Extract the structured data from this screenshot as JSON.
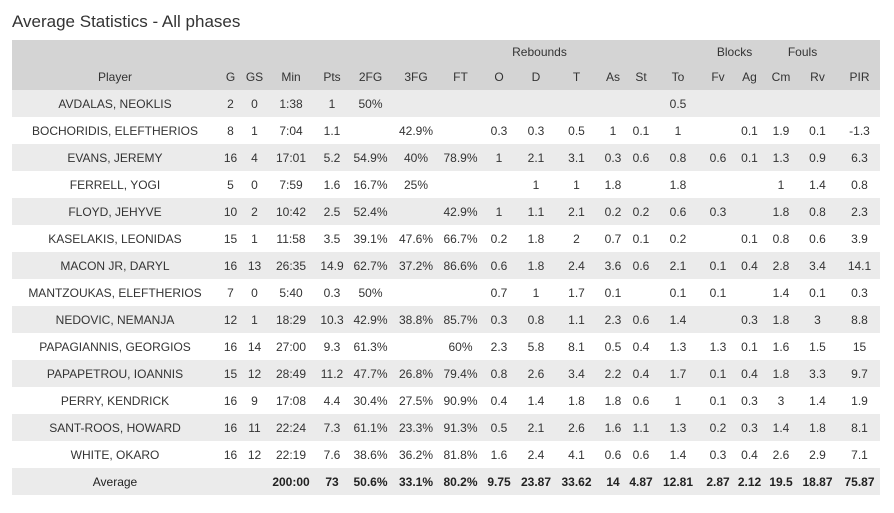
{
  "title": "Average Statistics - All phases",
  "groups": {
    "rebounds": "Rebounds",
    "blocks": "Blocks",
    "fouls": "Fouls"
  },
  "columns": [
    "Player",
    "G",
    "GS",
    "Min",
    "Pts",
    "2FG",
    "3FG",
    "FT",
    "O",
    "D",
    "T",
    "As",
    "St",
    "To",
    "Fv",
    "Ag",
    "Cm",
    "Rv",
    "PIR"
  ],
  "rows": [
    [
      "AVDALAS, NEOKLIS",
      "2",
      "0",
      "1:38",
      "1",
      "50%",
      "",
      "",
      "",
      "",
      "",
      "",
      "",
      "0.5",
      "",
      "",
      "",
      "",
      ""
    ],
    [
      "BOCHORIDIS, ELEFTHERIOS",
      "8",
      "1",
      "7:04",
      "1.1",
      "",
      "42.9%",
      "",
      "0.3",
      "0.3",
      "0.5",
      "1",
      "0.1",
      "1",
      "",
      "0.1",
      "1.9",
      "0.1",
      "-1.3"
    ],
    [
      "EVANS, JEREMY",
      "16",
      "4",
      "17:01",
      "5.2",
      "54.9%",
      "40%",
      "78.9%",
      "1",
      "2.1",
      "3.1",
      "0.3",
      "0.6",
      "0.8",
      "0.6",
      "0.1",
      "1.3",
      "0.9",
      "6.3"
    ],
    [
      "FERRELL, YOGI",
      "5",
      "0",
      "7:59",
      "1.6",
      "16.7%",
      "25%",
      "",
      "",
      "1",
      "1",
      "1.8",
      "",
      "1.8",
      "",
      "",
      "1",
      "1.4",
      "0.8"
    ],
    [
      "FLOYD, JEHYVE",
      "10",
      "2",
      "10:42",
      "2.5",
      "52.4%",
      "",
      "42.9%",
      "1",
      "1.1",
      "2.1",
      "0.2",
      "0.2",
      "0.6",
      "0.3",
      "",
      "1.8",
      "0.8",
      "2.3"
    ],
    [
      "KASELAKIS, LEONIDAS",
      "15",
      "1",
      "11:58",
      "3.5",
      "39.1%",
      "47.6%",
      "66.7%",
      "0.2",
      "1.8",
      "2",
      "0.7",
      "0.1",
      "0.2",
      "",
      "0.1",
      "0.8",
      "0.6",
      "3.9"
    ],
    [
      "MACON JR, DARYL",
      "16",
      "13",
      "26:35",
      "14.9",
      "62.7%",
      "37.2%",
      "86.6%",
      "0.6",
      "1.8",
      "2.4",
      "3.6",
      "0.6",
      "2.1",
      "0.1",
      "0.4",
      "2.8",
      "3.4",
      "14.1"
    ],
    [
      "MANTZOUKAS, ELEFTHERIOS",
      "7",
      "0",
      "5:40",
      "0.3",
      "50%",
      "",
      "",
      "0.7",
      "1",
      "1.7",
      "0.1",
      "",
      "0.1",
      "0.1",
      "",
      "1.4",
      "0.1",
      "0.3"
    ],
    [
      "NEDOVIC, NEMANJA",
      "12",
      "1",
      "18:29",
      "10.3",
      "42.9%",
      "38.8%",
      "85.7%",
      "0.3",
      "0.8",
      "1.1",
      "2.3",
      "0.6",
      "1.4",
      "",
      "0.3",
      "1.8",
      "3",
      "8.8"
    ],
    [
      "PAPAGIANNIS, GEORGIOS",
      "16",
      "14",
      "27:00",
      "9.3",
      "61.3%",
      "",
      "60%",
      "2.3",
      "5.8",
      "8.1",
      "0.5",
      "0.4",
      "1.3",
      "1.3",
      "0.1",
      "1.6",
      "1.5",
      "15"
    ],
    [
      "PAPAPETROU, IOANNIS",
      "15",
      "12",
      "28:49",
      "11.2",
      "47.7%",
      "26.8%",
      "79.4%",
      "0.8",
      "2.6",
      "3.4",
      "2.2",
      "0.4",
      "1.7",
      "0.1",
      "0.4",
      "1.8",
      "3.3",
      "9.7"
    ],
    [
      "PERRY, KENDRICK",
      "16",
      "9",
      "17:08",
      "4.4",
      "30.4%",
      "27.5%",
      "90.9%",
      "0.4",
      "1.4",
      "1.8",
      "1.8",
      "0.6",
      "1",
      "0.1",
      "0.3",
      "3",
      "1.4",
      "1.9"
    ],
    [
      "SANT-ROOS, HOWARD",
      "16",
      "11",
      "22:24",
      "7.3",
      "61.1%",
      "23.3%",
      "91.3%",
      "0.5",
      "2.1",
      "2.6",
      "1.6",
      "1.1",
      "1.3",
      "0.2",
      "0.3",
      "1.4",
      "1.8",
      "8.1"
    ],
    [
      "WHITE, OKARO",
      "16",
      "12",
      "22:19",
      "7.6",
      "38.6%",
      "36.2%",
      "81.8%",
      "1.6",
      "2.4",
      "4.1",
      "0.6",
      "0.6",
      "1.4",
      "0.3",
      "0.4",
      "2.6",
      "2.9",
      "7.1"
    ]
  ],
  "average": [
    "Average",
    "",
    "",
    "200:00",
    "73",
    "50.6%",
    "33.1%",
    "80.2%",
    "9.75",
    "23.87",
    "33.62",
    "14",
    "4.87",
    "12.81",
    "2.87",
    "2.12",
    "19.5",
    "18.87",
    "75.87"
  ]
}
